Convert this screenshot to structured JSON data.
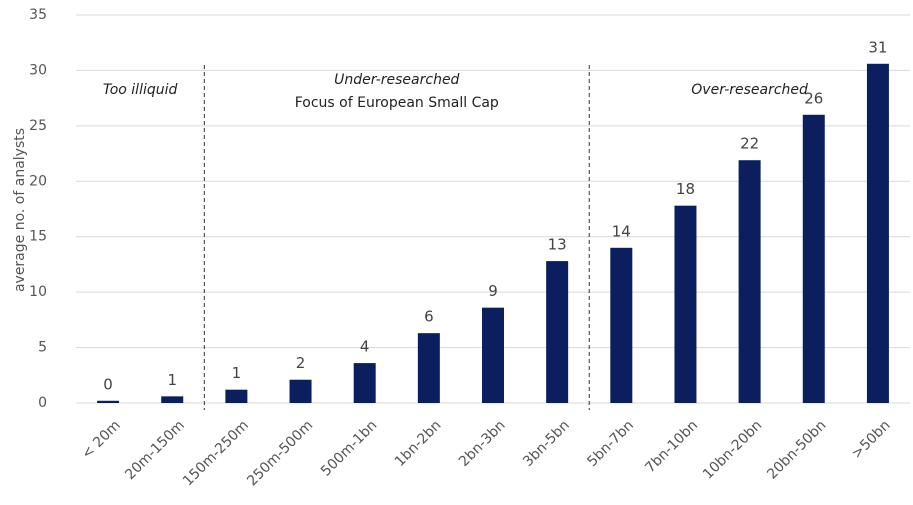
{
  "chart_data": {
    "type": "bar",
    "y_label": "average no. of analysts",
    "categories": [
      "< 20m",
      "20m-150m",
      "150m-250m",
      "250m-500m",
      "500m-1bn",
      "1bn-2bn",
      "2bn-3bn",
      "3bn-5bn",
      "5bn-7bn",
      "7bn-10bn",
      "10bn-20bn",
      "20bn-50bn",
      ">50bn"
    ],
    "values": [
      0.2,
      0.6,
      1.2,
      2.1,
      3.6,
      6.3,
      8.6,
      12.8,
      14.0,
      17.8,
      21.9,
      26.0,
      30.6
    ],
    "value_labels": [
      "0",
      "1",
      "1",
      "2",
      "4",
      "6",
      "9",
      "13",
      "14",
      "18",
      "22",
      "26",
      "31"
    ],
    "color": "#0b1f5e",
    "ylim": [
      0,
      35
    ],
    "yticks": [
      0,
      5,
      10,
      15,
      20,
      25,
      30,
      35
    ],
    "grid": true,
    "annotations": [
      "Too illiquid",
      "Under-researched",
      "Focus of European Small Cap",
      "Over-researched"
    ]
  }
}
